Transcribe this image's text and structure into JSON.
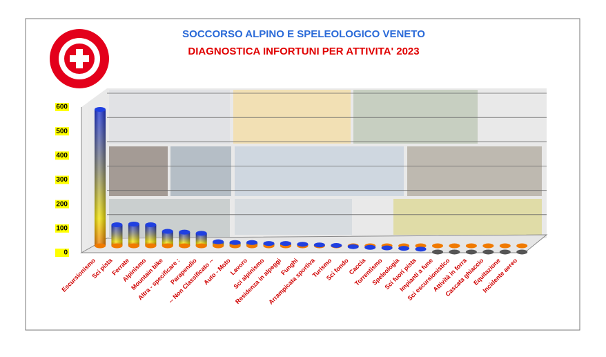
{
  "chart_data": {
    "type": "bar",
    "title": "SOCCORSO ALPINO E SPELEOLOGICO VENETO",
    "subtitle": "DIAGNOSTICA INFORTUNI PER ATTIVITA' 2023",
    "categories": [
      "Escursionismo",
      "Sci pista",
      "Ferrate",
      "Alpinismo",
      "Mountain bike",
      "Altra - specificare :",
      "Parapendio",
      "-- Non Classificato --",
      "Auto - Moto",
      "Lavoro",
      "Sci alpinismo",
      "Residenza in alpeggi",
      "Funghi",
      "Arrampicata sportiva",
      "Turismo",
      "Sci fondo",
      "Caccia",
      "Torrentismo",
      "Speleologia",
      "Sci fuori pista",
      "Impianti a fune",
      "Sci escursionistico",
      "Attività  in forra",
      "Cascata ghiaccio",
      "Equitazione",
      "Incidente aereo"
    ],
    "values": [
      590,
      115,
      118,
      115,
      88,
      85,
      80,
      45,
      42,
      42,
      38,
      38,
      35,
      32,
      30,
      25,
      22,
      20,
      18,
      15,
      3,
      3,
      3,
      3,
      3,
      3
    ],
    "ylim": [
      0,
      600
    ],
    "yticks": [
      0,
      100,
      200,
      300,
      400,
      500,
      600
    ],
    "grid": true
  }
}
